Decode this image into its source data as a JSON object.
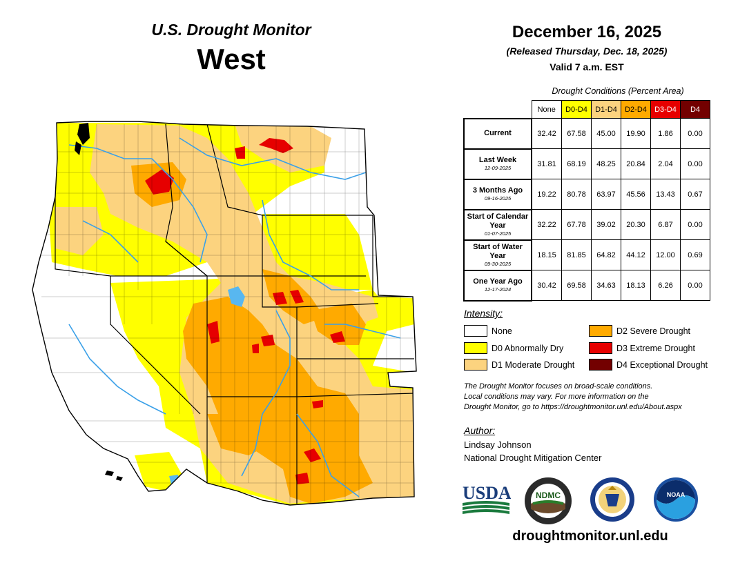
{
  "header": {
    "subtitle": "U.S. Drought Monitor",
    "region": "West",
    "date": "December 16, 2025",
    "released": "(Released Thursday, Dec. 18, 2025)",
    "valid": "Valid 7 a.m. EST"
  },
  "conditions": {
    "title": "Drought Conditions (Percent Area)",
    "columns": [
      {
        "label": "None",
        "color": "#ffffff"
      },
      {
        "label": "D0-D4",
        "color": "#ffff00"
      },
      {
        "label": "D1-D4",
        "color": "#fcd37f"
      },
      {
        "label": "D2-D4",
        "color": "#ffaa00"
      },
      {
        "label": "D3-D4",
        "color": "#e60000"
      },
      {
        "label": "D4",
        "color": "#730000"
      }
    ],
    "rows": [
      {
        "label": "Current",
        "date": "",
        "values": [
          "32.42",
          "67.58",
          "45.00",
          "19.90",
          "1.86",
          "0.00"
        ]
      },
      {
        "label": "Last Week",
        "date": "12-09-2025",
        "values": [
          "31.81",
          "68.19",
          "48.25",
          "20.84",
          "2.04",
          "0.00"
        ]
      },
      {
        "label": "3 Months Ago",
        "date": "09-16-2025",
        "values": [
          "19.22",
          "80.78",
          "63.97",
          "45.56",
          "13.43",
          "0.67"
        ]
      },
      {
        "label": "Start of Calendar Year",
        "date": "01-07-2025",
        "values": [
          "32.22",
          "67.78",
          "39.02",
          "20.30",
          "6.87",
          "0.00"
        ]
      },
      {
        "label": "Start of Water Year",
        "date": "09-30-2025",
        "values": [
          "18.15",
          "81.85",
          "64.82",
          "44.12",
          "12.00",
          "0.69"
        ]
      },
      {
        "label": "One Year Ago",
        "date": "12-17-2024",
        "values": [
          "30.42",
          "69.58",
          "34.63",
          "18.13",
          "6.26",
          "0.00"
        ]
      }
    ]
  },
  "legend": {
    "title": "Intensity:",
    "items": [
      {
        "label": "None",
        "color": "#ffffff"
      },
      {
        "label": "D0 Abnormally Dry",
        "color": "#ffff00"
      },
      {
        "label": "D1 Moderate Drought",
        "color": "#fcd37f"
      },
      {
        "label": "D2 Severe Drought",
        "color": "#ffaa00"
      },
      {
        "label": "D3 Extreme Drought",
        "color": "#e60000"
      },
      {
        "label": "D4 Exceptional Drought",
        "color": "#730000"
      }
    ]
  },
  "note": {
    "line1": "The Drought Monitor focuses on broad-scale conditions.",
    "line2": "Local conditions may vary. For more information on the",
    "line3": "Drought Monitor, go to https://droughtmonitor.unl.edu/About.aspx"
  },
  "author": {
    "title": "Author:",
    "name": "Lindsay Johnson",
    "org": "National Drought Mitigation Center"
  },
  "logos": {
    "usda": "USDA",
    "ndmc": "NDMC",
    "noaa": "NOAA"
  },
  "site": "droughtmonitor.unl.edu"
}
